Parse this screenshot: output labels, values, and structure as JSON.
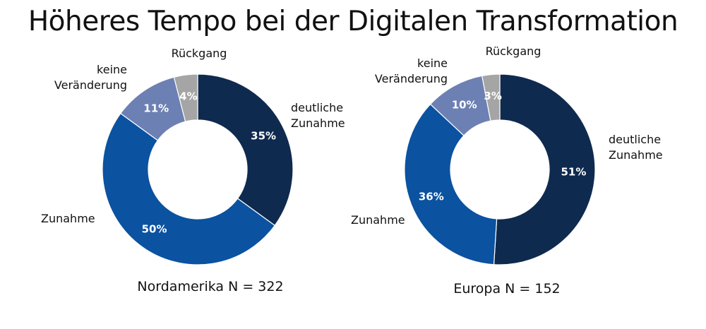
{
  "title": "Höheres Tempo bei der Digitalen Transformation",
  "colors": {
    "deutliche Zunahme": "#0f2a4f",
    "Zunahme": "#0b52a0",
    "keine Veränderung": "#6d80b3",
    "Rückgang": "#a5a5a5"
  },
  "chart_data": [
    {
      "type": "pie",
      "donut": true,
      "caption": "Nordamerika N = 322",
      "categories": [
        "deutliche Zunahme",
        "Zunahme",
        "keine Veränderung",
        "Rückgang"
      ],
      "values": [
        35,
        50,
        11,
        4
      ],
      "data_labels": [
        "35%",
        "50%",
        "11%",
        "4%"
      ]
    },
    {
      "type": "pie",
      "donut": true,
      "caption": "Europa N = 152",
      "categories": [
        "deutliche Zunahme",
        "Zunahme",
        "keine Veränderung",
        "Rückgang"
      ],
      "values": [
        51,
        36,
        10,
        3
      ],
      "data_labels": [
        "51%",
        "36%",
        "10%",
        "3%"
      ]
    }
  ]
}
